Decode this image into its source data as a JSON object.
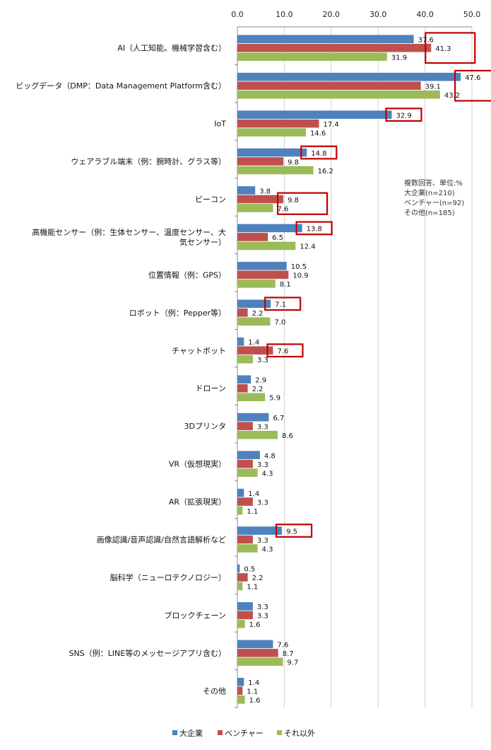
{
  "chart_data": {
    "type": "bar",
    "orientation": "horizontal",
    "categories": [
      [
        "AI（人工知能。機械学習含む）"
      ],
      [
        "ビッグデータ（DMP：Data Management Platform含む）"
      ],
      [
        "IoT"
      ],
      [
        "ウェアラブル端末（例：腕時計、グラス等）"
      ],
      [
        "ビーコン"
      ],
      [
        "高機能センサー（例：生体センサー、温度センサー、大",
        "気センサー）"
      ],
      [
        "位置情報（例：GPS）"
      ],
      [
        "ロボット（例：Pepper等）"
      ],
      [
        "チャットボット"
      ],
      [
        "ドローン"
      ],
      [
        "3Dプリンタ"
      ],
      [
        "VR（仮想現実）"
      ],
      [
        "AR（拡張現実）"
      ],
      [
        "画像認識/音声認識/自然言語解析など"
      ],
      [
        "脳科学（ニューロテクノロジー）"
      ],
      [
        "ブロックチェーン"
      ],
      [
        "SNS（例：LINE等のメッセージアプリ含む）"
      ],
      [
        "その他"
      ]
    ],
    "series": [
      {
        "name": "大企業",
        "color": "#4F81BD",
        "values": [
          37.6,
          47.6,
          32.9,
          14.8,
          3.8,
          13.8,
          10.5,
          7.1,
          1.4,
          2.9,
          6.7,
          4.8,
          1.4,
          9.5,
          0.5,
          3.3,
          7.6,
          1.4
        ]
      },
      {
        "name": "ベンチャー",
        "color": "#C0504D",
        "values": [
          41.3,
          39.1,
          17.4,
          9.8,
          9.8,
          6.5,
          10.9,
          2.2,
          7.6,
          2.2,
          3.3,
          3.3,
          3.3,
          3.3,
          2.2,
          3.3,
          8.7,
          1.1
        ]
      },
      {
        "name": "それ以外",
        "color": "#9BBB59",
        "values": [
          31.9,
          43.2,
          14.6,
          16.2,
          7.6,
          12.4,
          8.1,
          7.0,
          3.3,
          5.9,
          8.6,
          4.3,
          1.1,
          4.3,
          1.1,
          1.6,
          9.7,
          1.6
        ]
      }
    ],
    "highlights": [
      {
        "category": 0,
        "series": [
          0,
          1,
          2
        ]
      },
      {
        "category": 1,
        "series": [
          0,
          1,
          2
        ]
      },
      {
        "category": 2,
        "series": [
          0
        ]
      },
      {
        "category": 3,
        "series": [
          0
        ]
      },
      {
        "category": 4,
        "series": [
          1,
          2
        ]
      },
      {
        "category": 5,
        "series": [
          0
        ]
      },
      {
        "category": 7,
        "series": [
          0
        ]
      },
      {
        "category": 8,
        "series": [
          1
        ]
      },
      {
        "category": 13,
        "series": [
          0
        ]
      }
    ],
    "highlight_color": "#C00000",
    "xlim": [
      0,
      50
    ],
    "xticks": [
      "0.0",
      "10.0",
      "20.0",
      "30.0",
      "40.0",
      "50.0"
    ],
    "xaxis_position": "top",
    "grid": true,
    "legend_position": "bottom",
    "annotation": [
      "複数回答、単位:%",
      "大企業(n=210)",
      "ベンチャー(n=92)",
      "その他(n=185)"
    ]
  }
}
